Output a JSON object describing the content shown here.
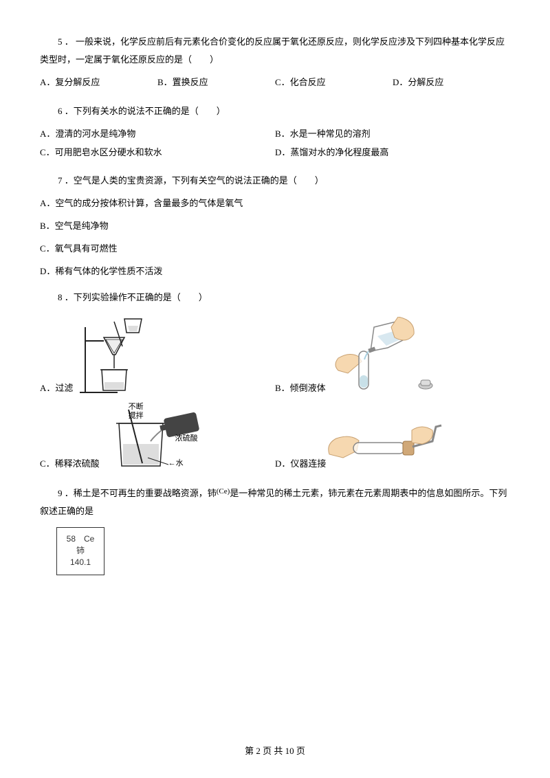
{
  "q5": {
    "stem": "5 ．  一般来说，化学反应前后有元素化合价变化的反应属于氧化还原反应，则化学反应涉及下列四种基本化学反应类型时，一定属于氧化还原反应的是（　　）",
    "a": "A．复分解反应",
    "b": "B．置换反应",
    "c": "C．化合反应",
    "d": "D．分解反应"
  },
  "q6": {
    "stem": "6 ．下列有关水的说法不正确的是（　　）",
    "a": "A．澄清的河水是纯净物",
    "b": "B．水是一种常见的溶剂",
    "c": "C．可用肥皂水区分硬水和软水",
    "d": "D．蒸馏对水的净化程度最高"
  },
  "q7": {
    "stem": "7 ．空气是人类的宝贵资源，下列有关空气的说法正确的是（　　）",
    "a": "A．空气的成分按体积计算，含量最多的气体是氧气",
    "b": "B．空气是纯净物",
    "c": "C．氧气具有可燃性",
    "d": "D．稀有气体的化学性质不活泼"
  },
  "q8": {
    "stem": "8 ．下列实验操作不正确的是（　　）",
    "a": "A．过滤",
    "b": "B．倾倒液体",
    "c": "C．稀释浓硫酸",
    "d": "D．仪器连接",
    "label_stir": "不断\n搅拌",
    "label_acid": "浓硫酸",
    "label_water": "水"
  },
  "q9": {
    "stem_before": "9 ．稀土是不可再生的重要战略资源，铈",
    "stem_ce": "(Ce)",
    "stem_after": "是一种常见的稀土元素，铈元素在元素周期表中的信息如图所示。下列叙述正确的是",
    "box_top": "58　Ce",
    "box_mid": "铈",
    "box_bot": "140.1"
  },
  "footer": "第 2 页 共 10 页",
  "colors": {
    "skin": "#f6d8b0",
    "skin_dark": "#e8c090",
    "glass": "#d0d0d0",
    "liquid": "#c8e0e8",
    "line": "#222222"
  }
}
